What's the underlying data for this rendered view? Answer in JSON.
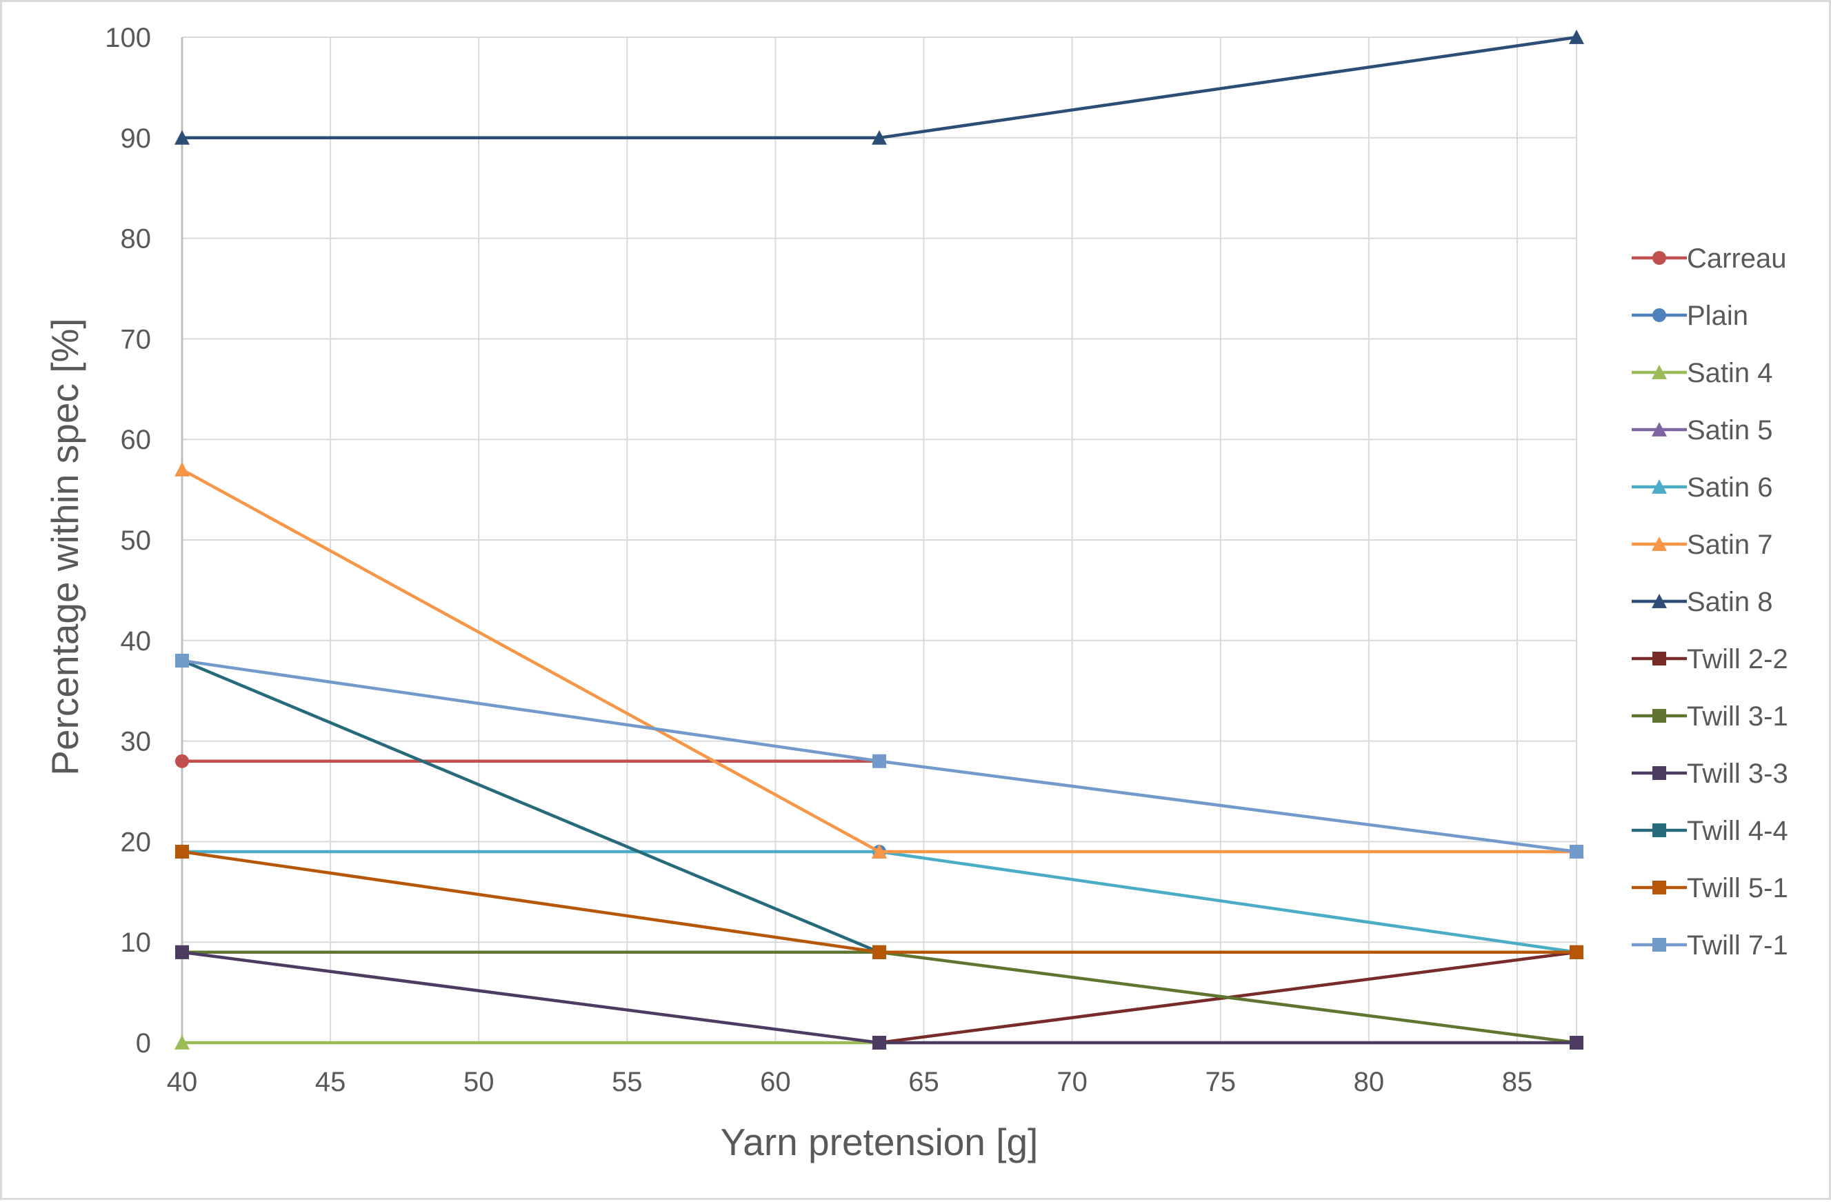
{
  "chart_data": {
    "type": "line",
    "title": "",
    "xlabel": "Yarn pretension [g]",
    "ylabel": "Percentage within spec [%]",
    "xlim": [
      40,
      87
    ],
    "ylim": [
      0,
      100
    ],
    "xticks": [
      40,
      45,
      50,
      55,
      60,
      65,
      70,
      75,
      80,
      85
    ],
    "yticks": [
      0,
      10,
      20,
      30,
      40,
      50,
      60,
      70,
      80,
      90,
      100
    ],
    "grid": true,
    "legend_position": "right",
    "x": [
      40,
      63.5,
      87
    ],
    "series": [
      {
        "name": "Carreau",
        "values": [
          28,
          28,
          null
        ],
        "color": "#c0504d",
        "marker": "circle"
      },
      {
        "name": "Plain",
        "values": [
          null,
          19,
          null
        ],
        "color": "#4f81bd",
        "marker": "circle"
      },
      {
        "name": "Satin 4",
        "values": [
          0,
          0,
          null
        ],
        "color": "#9bbb59",
        "marker": "triangle"
      },
      {
        "name": "Satin 5",
        "values": [
          null,
          null,
          null
        ],
        "color": "#8064a2",
        "marker": "triangle"
      },
      {
        "name": "Satin 6",
        "values": [
          19,
          19,
          9
        ],
        "color": "#4bacc6",
        "marker": "triangle"
      },
      {
        "name": "Satin 7",
        "values": [
          57,
          19,
          19
        ],
        "color": "#f79646",
        "marker": "triangle"
      },
      {
        "name": "Satin 8",
        "values": [
          90,
          90,
          100
        ],
        "color": "#2c4d75",
        "marker": "triangle"
      },
      {
        "name": "Twill 2-2",
        "values": [
          null,
          0,
          9
        ],
        "color": "#772c2a",
        "marker": "square"
      },
      {
        "name": "Twill 3-1",
        "values": [
          9,
          9,
          0
        ],
        "color": "#5f7530",
        "marker": "square"
      },
      {
        "name": "Twill 3-3",
        "values": [
          9,
          0,
          0
        ],
        "color": "#4d3b62",
        "marker": "square"
      },
      {
        "name": "Twill 4-4",
        "values": [
          38,
          9,
          null
        ],
        "color": "#276a7c",
        "marker": "square"
      },
      {
        "name": "Twill 5-1",
        "values": [
          19,
          9,
          9
        ],
        "color": "#b65708",
        "marker": "square"
      },
      {
        "name": "Twill 7-1",
        "values": [
          38,
          28,
          19
        ],
        "color": "#729aca",
        "marker": "square"
      }
    ]
  }
}
